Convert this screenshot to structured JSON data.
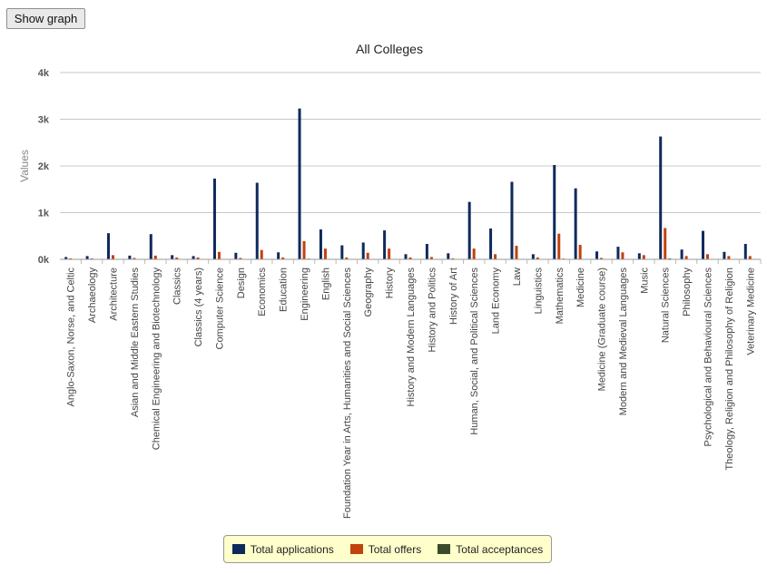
{
  "toolbar": {
    "show_graph_label": "Show graph"
  },
  "chart_data": {
    "type": "bar",
    "title": "All Colleges",
    "xlabel": "",
    "ylabel": "Values",
    "ylim": [
      0,
      4000
    ],
    "yticks": [
      0,
      1000,
      2000,
      3000,
      4000
    ],
    "ytick_labels": [
      "0k",
      "1k",
      "2k",
      "3k",
      "4k"
    ],
    "grid": true,
    "legend_position": "bottom",
    "categories": [
      "Anglo-Saxon, Norse, and Celtic",
      "Archaeology",
      "Architecture",
      "Asian and Middle Eastern Studies",
      "Chemical Engineering and Biotechnology",
      "Classics",
      "Classics (4 years)",
      "Computer Science",
      "Design",
      "Economics",
      "Education",
      "Engineering",
      "English",
      "Foundation Year in Arts, Humanities and Social Sciences",
      "Geography",
      "History",
      "History and Modern Languages",
      "History and Politics",
      "History of Art",
      "Human, Social, and Political Sciences",
      "Land Economy",
      "Law",
      "Linguistics",
      "Mathematics",
      "Medicine",
      "Medicine (Graduate course)",
      "Modern and Medieval Languages",
      "Music",
      "Natural Sciences",
      "Philosophy",
      "Psychological and Behavioural Sciences",
      "Theology, Religion and Philosophy of Religion",
      "Veterinary Medicine"
    ],
    "series": [
      {
        "name": "Total applications",
        "color": "#0e2a5c",
        "values": [
          50,
          70,
          560,
          80,
          540,
          90,
          70,
          1730,
          140,
          1640,
          150,
          3230,
          640,
          300,
          360,
          620,
          110,
          330,
          130,
          1230,
          660,
          1660,
          110,
          2020,
          1520,
          170,
          270,
          130,
          2630,
          210,
          610,
          160,
          330
        ]
      },
      {
        "name": "Total offers",
        "color": "#c2410c",
        "values": [
          20,
          20,
          90,
          30,
          80,
          40,
          40,
          160,
          30,
          200,
          40,
          390,
          230,
          40,
          140,
          230,
          40,
          50,
          20,
          230,
          110,
          290,
          40,
          550,
          310,
          30,
          150,
          90,
          670,
          70,
          110,
          70,
          70
        ]
      },
      {
        "name": "Total acceptances",
        "color": "#3b4a2a",
        "values": [
          5,
          5,
          10,
          5,
          10,
          5,
          5,
          10,
          5,
          10,
          5,
          15,
          10,
          5,
          10,
          10,
          5,
          5,
          5,
          10,
          10,
          10,
          5,
          15,
          10,
          5,
          10,
          5,
          20,
          5,
          10,
          5,
          5
        ]
      }
    ]
  }
}
